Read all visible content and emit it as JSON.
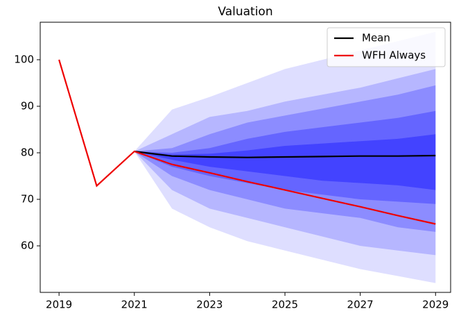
{
  "chart_data": {
    "type": "fan-line",
    "title": "Valuation",
    "x": [
      2019,
      2020,
      2021,
      2022,
      2023,
      2024,
      2025,
      2026,
      2027,
      2028,
      2029
    ],
    "series": [
      {
        "name": "Mean",
        "color": "#000000",
        "values": [
          null,
          null,
          80.3,
          79.3,
          79.1,
          79.0,
          79.1,
          79.2,
          79.3,
          79.3,
          79.4
        ]
      },
      {
        "name": "WFH Always",
        "color": "#ee0000",
        "values": [
          100,
          72.9,
          80.3,
          77.5,
          75.7,
          73.8,
          72.0,
          70.2,
          68.4,
          66.5,
          64.7
        ]
      }
    ],
    "band_color": "#0000ff",
    "bands": [
      {
        "upper": [
          null,
          null,
          80.3,
          89.3,
          92,
          95,
          98,
          100,
          102,
          104,
          106
        ],
        "lower": [
          null,
          null,
          80.3,
          68,
          64,
          61,
          59,
          57,
          55,
          53.5,
          52
        ]
      },
      {
        "upper": [
          null,
          null,
          80.3,
          84,
          87.7,
          89,
          91,
          92.5,
          94,
          96,
          98
        ],
        "lower": [
          null,
          null,
          80.3,
          72,
          68,
          66,
          64,
          62,
          60,
          59,
          58
        ]
      },
      {
        "upper": [
          null,
          null,
          80.3,
          81,
          84,
          86.5,
          88,
          89.5,
          91,
          92.5,
          94.5
        ],
        "lower": [
          null,
          null,
          80.3,
          75,
          72,
          70,
          68,
          67,
          66,
          64,
          63
        ]
      },
      {
        "upper": [
          null,
          null,
          80.3,
          80,
          81,
          83,
          84.5,
          85.5,
          86.5,
          87.5,
          89
        ],
        "lower": [
          null,
          null,
          80.3,
          77,
          75,
          73.5,
          72,
          71,
          70,
          69.5,
          69
        ]
      },
      {
        "upper": [
          null,
          null,
          80.3,
          79.6,
          79.8,
          80.5,
          81.5,
          82,
          82.5,
          83,
          84
        ],
        "lower": [
          null,
          null,
          80.3,
          78.5,
          77,
          76,
          75,
          74,
          73.5,
          73,
          72
        ]
      }
    ],
    "xlim": [
      2018.5,
      2029.4
    ],
    "xticks": [
      2019,
      2021,
      2023,
      2025,
      2027,
      2029
    ],
    "ylim": [
      50,
      108.06
    ],
    "yticks": [
      60,
      70,
      80,
      90,
      100
    ],
    "legend": "upper right"
  }
}
